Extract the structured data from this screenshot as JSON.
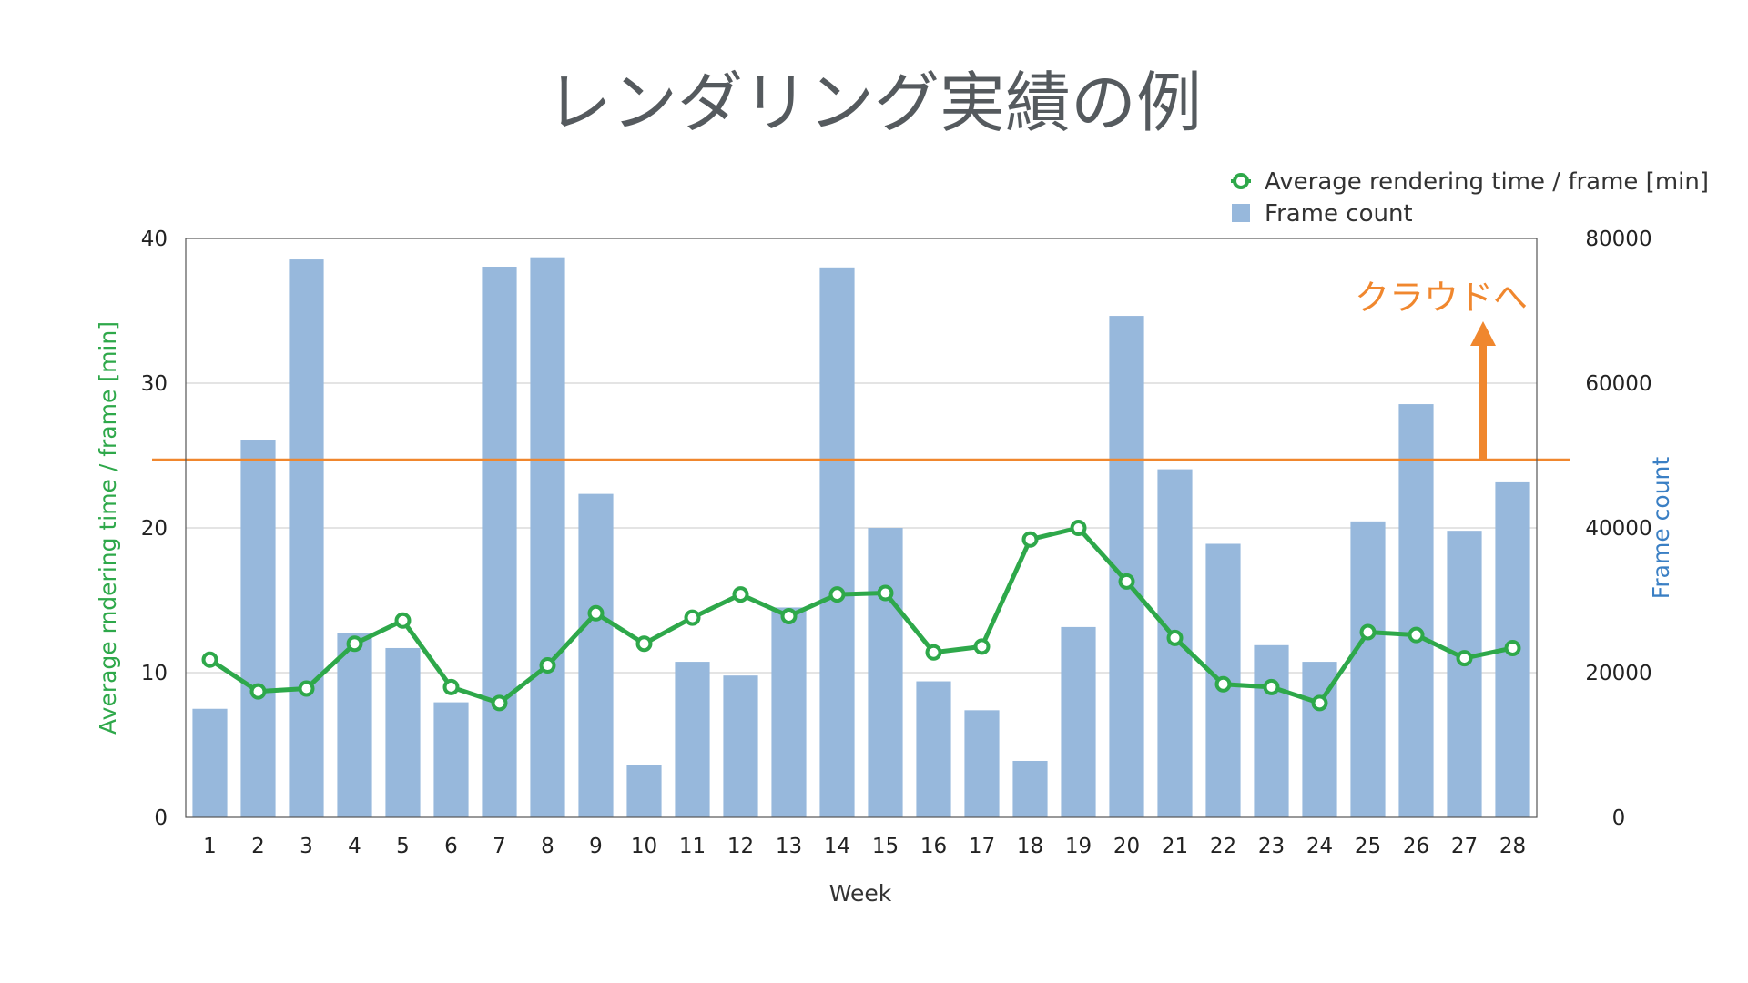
{
  "chart_data": {
    "type": "bar",
    "title": "レンダリング実績の例",
    "xlabel": "Week",
    "ylabel_left": "Average rndering time / frame [min]",
    "ylabel_right": "Frame count",
    "categories": [
      "1",
      "2",
      "3",
      "4",
      "5",
      "6",
      "7",
      "8",
      "9",
      "10",
      "11",
      "12",
      "13",
      "14",
      "15",
      "16",
      "17",
      "18",
      "19",
      "20",
      "21",
      "22",
      "23",
      "24",
      "25",
      "26",
      "27",
      "28"
    ],
    "left_axis": {
      "ylim": [
        0,
        40
      ],
      "ticks": [
        "0",
        "10",
        "20",
        "30",
        "40"
      ]
    },
    "right_axis": {
      "ylim": [
        0,
        80000
      ],
      "ticks": [
        "0",
        "20000",
        "40000",
        "60000",
        "80000"
      ]
    },
    "series": [
      {
        "name": "Frame count",
        "type": "bar",
        "axis": "right",
        "color": "#97b8dc",
        "values": [
          15000,
          52200,
          77100,
          25500,
          23400,
          15900,
          76100,
          77400,
          44700,
          7200,
          21500,
          19600,
          29000,
          76000,
          40000,
          18800,
          14800,
          7800,
          26300,
          69300,
          48100,
          37800,
          23800,
          21500,
          40900,
          57100,
          39600,
          46300
        ]
      },
      {
        "name": "Average rendering time / frame [min]",
        "type": "line",
        "axis": "left",
        "color": "#2ea84a",
        "values": [
          10.9,
          8.7,
          8.9,
          12.0,
          13.6,
          9.0,
          7.9,
          10.5,
          14.1,
          12.0,
          13.8,
          15.4,
          13.9,
          15.4,
          15.5,
          11.4,
          11.8,
          19.2,
          20.0,
          16.3,
          12.4,
          9.2,
          9.0,
          7.9,
          12.8,
          12.6,
          11.0,
          11.7
        ]
      }
    ],
    "threshold": {
      "value": 24.7,
      "axis": "left",
      "color": "#f0872e"
    },
    "annotation": {
      "text": "クラウドへ",
      "color": "#f0872e"
    },
    "legend": {
      "placement": "top-right",
      "entries": [
        "Average rendering time / frame [min]",
        "Frame count"
      ]
    },
    "grid": true
  }
}
